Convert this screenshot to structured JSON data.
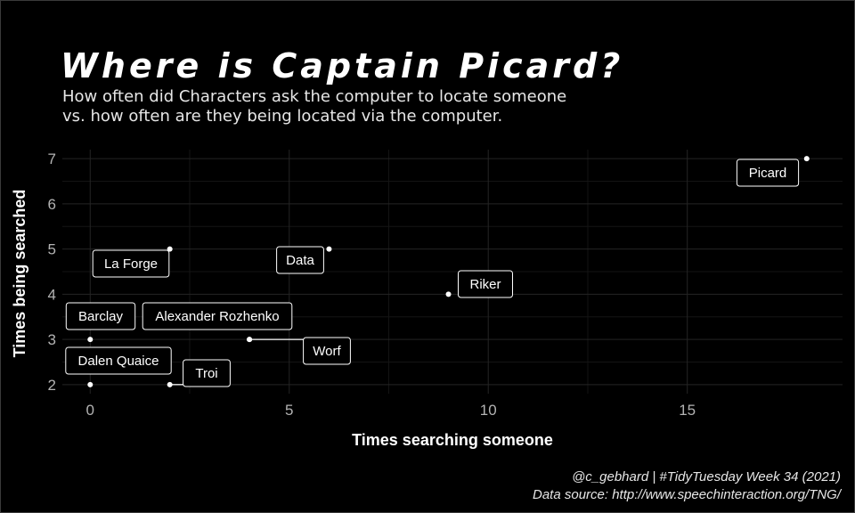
{
  "chart_data": {
    "type": "scatter",
    "title": "Where is Captain Picard?",
    "subtitle_lines": [
      "How often did Characters ask the computer to locate someone",
      "vs. how often are they being located via the computer."
    ],
    "xlabel": "Times searching someone",
    "ylabel": "Times being searched",
    "xlim": [
      -0.7,
      18.9
    ],
    "ylim": [
      1.8,
      7.2
    ],
    "x_ticks": [
      0,
      5,
      10,
      15
    ],
    "y_ticks": [
      2,
      3,
      4,
      5,
      6,
      7
    ],
    "grid": true,
    "points": [
      {
        "label": "Picard",
        "x": 18,
        "y": 7
      },
      {
        "label": "La Forge",
        "x": 2,
        "y": 5
      },
      {
        "label": "Data",
        "x": 6,
        "y": 5
      },
      {
        "label": "Riker",
        "x": 9,
        "y": 4
      },
      {
        "label": "Barclay",
        "x": 0,
        "y": 3
      },
      {
        "label": "Alexander Rozhenko",
        "x": 4,
        "y": 3
      },
      {
        "label": "Worf",
        "x": 4,
        "y": 3
      },
      {
        "label": "Dalen Quaice",
        "x": 0,
        "y": 2
      },
      {
        "label": "Troi",
        "x": 2,
        "y": 2
      }
    ],
    "caption_lines": [
      "@c_gebhard | #TidyTuesday Week 34 (2021)",
      "Data source: http://www.speechinteraction.org/TNG/"
    ]
  },
  "colors": {
    "background": "#000000",
    "text": "#ffffff",
    "grid_major": "#242424",
    "grid_minor": "#141414",
    "point": "#ffffff"
  }
}
